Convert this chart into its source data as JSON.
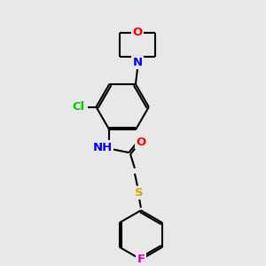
{
  "bg_color": "#e8e8e8",
  "bond_color": "#000000",
  "atom_colors": {
    "O": "#ff0000",
    "N": "#0000ff",
    "Cl": "#00cc00",
    "S": "#ccaa00",
    "F": "#cc00cc",
    "C": "#000000",
    "H": "#000000"
  },
  "font_size": 9.5,
  "line_width": 1.5
}
